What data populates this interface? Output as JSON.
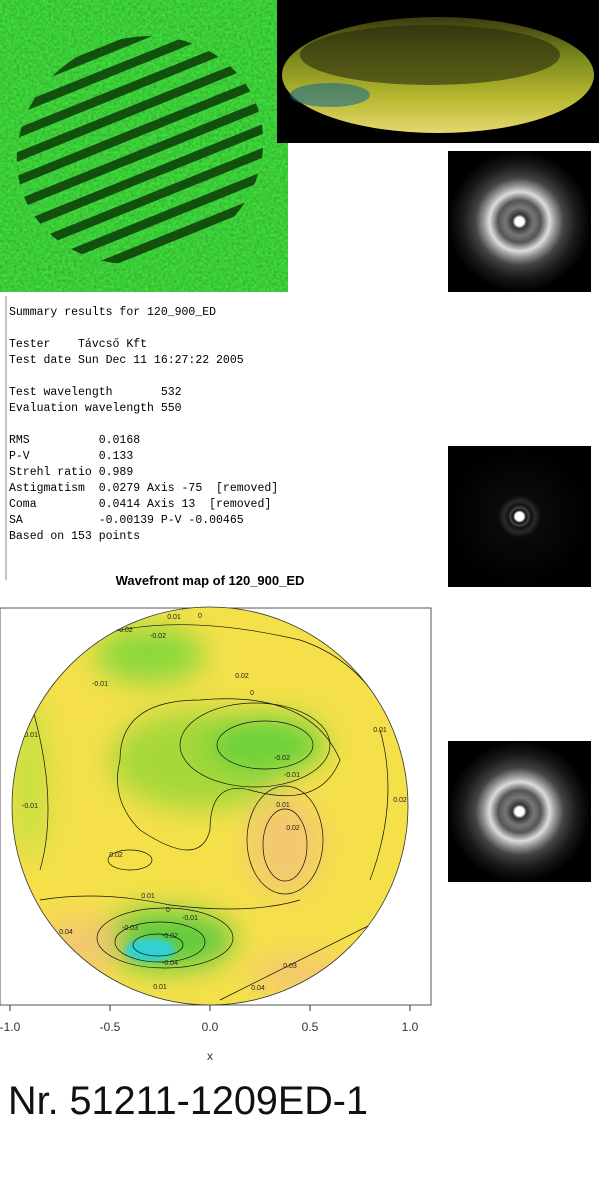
{
  "summary": {
    "lines": [
      "Summary results for 120_900_ED",
      "Tester    Távcső Kft",
      "Test date Sun Dec 11 16:27:22 2005",
      "Test wavelength       532",
      "Evaluation wavelength 550",
      "RMS          0.0168",
      "P-V          0.133",
      "Strehl ratio 0.989",
      "Astigmatism  0.0279 Axis -75  [removed]",
      "Coma         0.0414 Axis 13  [removed]",
      "SA           -0.00139 P-V -0.00465",
      "Based on 153 points"
    ]
  },
  "chart_data": {
    "type": "contour",
    "title": "Wavefront map of 120_900_ED",
    "x_label": "x",
    "xlim": [
      -1.05,
      1.105
    ],
    "xticks": [
      {
        "value": -1,
        "label": "-1.0"
      },
      -0.5,
      {
        "value": 0,
        "label": "0.0"
      },
      0.5,
      {
        "value": 1,
        "label": "1.0"
      }
    ],
    "contour_labels": [
      "0.02",
      "-0.02",
      "0.01",
      "0",
      "-0.01",
      "0.02",
      "0",
      "-0.01",
      "-0.02",
      "-0.01",
      "0.01",
      "0.02",
      "0.02",
      "0.01",
      "0",
      "-0.01",
      "-0.02",
      "-0.03",
      "-0.04",
      "0.04",
      "0.03",
      "0.04",
      "0.01",
      "0.01",
      "0.02",
      "-0.01"
    ]
  },
  "footer": {
    "label": "Nr. 51211-1209ED-1"
  }
}
